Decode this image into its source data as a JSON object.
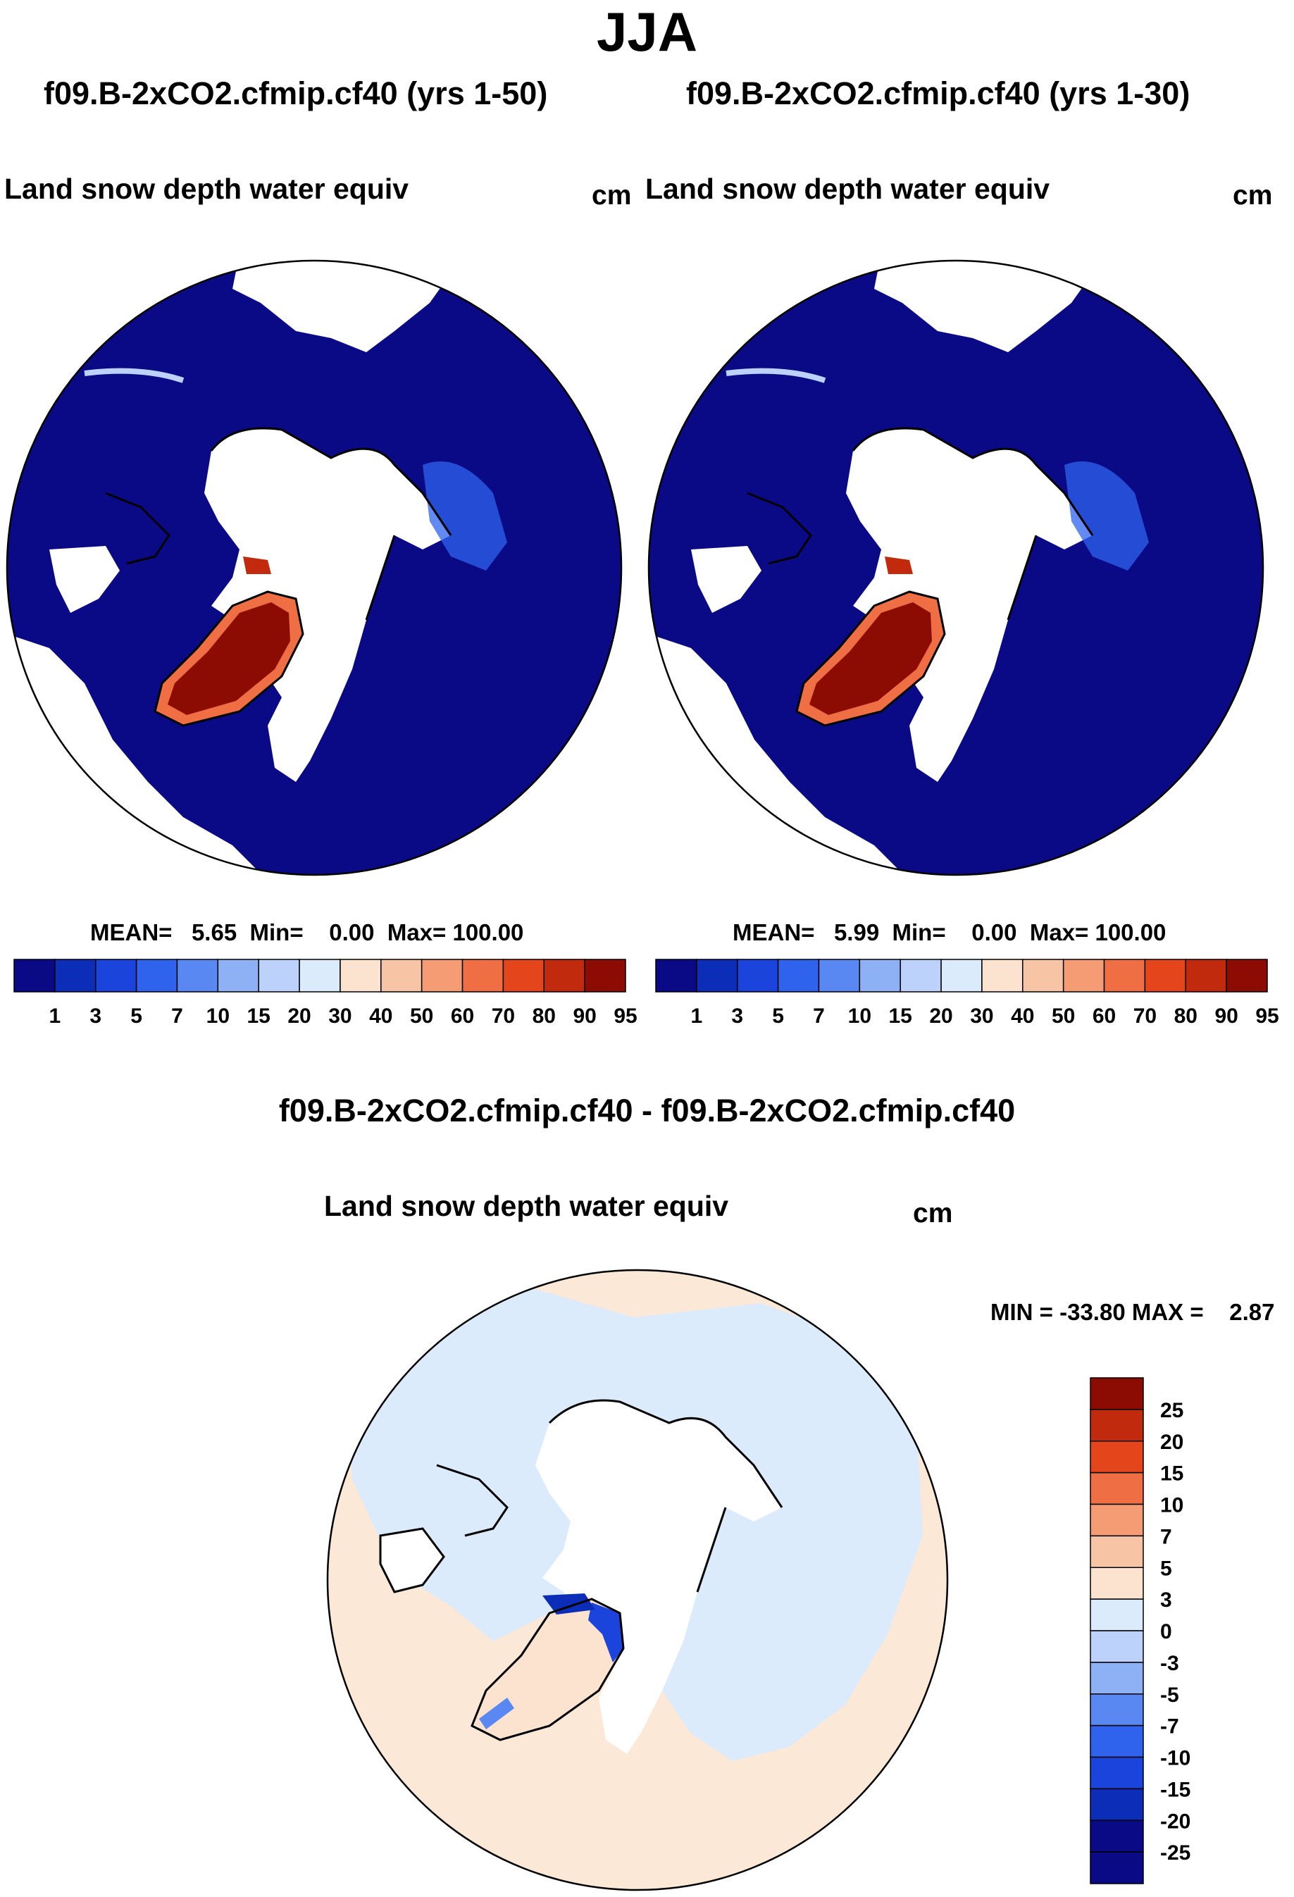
{
  "figure": {
    "season": "JJA",
    "left_run_title": "f09.B-2xCO2.cfmip.cf40 (yrs 1-50)",
    "right_run_title": "f09.B-2xCO2.cfmip.cf40 (yrs 1-30)",
    "variable": "Land snow depth water equiv",
    "unit": "cm",
    "diff_title": "f09.B-2xCO2.cfmip.cf40 - f09.B-2xCO2.cfmip.cf40"
  },
  "chart_data": [
    {
      "type": "map",
      "projection": "north-polar-stereographic",
      "title": "f09.B-2xCO2.cfmip.cf40 (yrs 1-50)",
      "variable": "Land snow depth water equiv",
      "unit": "cm",
      "stats_text": "MEAN=   5.65  Min=    0.00  Max= 100.00",
      "mean": 5.65,
      "min": 0.0,
      "max": 100.0,
      "legend_levels": [
        "1",
        "3",
        "5",
        "7",
        "10",
        "15",
        "20",
        "30",
        "40",
        "50",
        "60",
        "70",
        "80",
        "90",
        "95"
      ],
      "legend_colors": [
        "#0a0a86",
        "#0b2db8",
        "#1a44dc",
        "#2f63ee",
        "#5a88f2",
        "#8eb0f5",
        "#bdd2fa",
        "#dcebfc",
        "#fbe3cf",
        "#f8c4a6",
        "#f59c74",
        "#ef6e44",
        "#e4451b",
        "#c22a0e",
        "#8c0c04"
      ]
    },
    {
      "type": "map",
      "projection": "north-polar-stereographic",
      "title": "f09.B-2xCO2.cfmip.cf40 (yrs 1-30)",
      "variable": "Land snow depth water equiv",
      "unit": "cm",
      "stats_text": "MEAN=   5.99  Min=    0.00  Max= 100.00",
      "mean": 5.99,
      "min": 0.0,
      "max": 100.0,
      "legend_levels": [
        "1",
        "3",
        "5",
        "7",
        "10",
        "15",
        "20",
        "30",
        "40",
        "50",
        "60",
        "70",
        "80",
        "90",
        "95"
      ],
      "legend_colors": [
        "#0a0a86",
        "#0b2db8",
        "#1a44dc",
        "#2f63ee",
        "#5a88f2",
        "#8eb0f5",
        "#bdd2fa",
        "#dcebfc",
        "#fbe3cf",
        "#f8c4a6",
        "#f59c74",
        "#ef6e44",
        "#e4451b",
        "#c22a0e",
        "#8c0c04"
      ]
    },
    {
      "type": "map",
      "projection": "north-polar-stereographic",
      "title": "f09.B-2xCO2.cfmip.cf40 - f09.B-2xCO2.cfmip.cf40",
      "variable": "Land snow depth water equiv",
      "unit": "cm",
      "stats_text": "MIN = -33.80 MAX =    2.87",
      "min": -33.8,
      "max": 2.87,
      "legend_levels": [
        "25",
        "20",
        "15",
        "10",
        "7",
        "5",
        "3",
        "0",
        "-3",
        "-5",
        "-7",
        "-10",
        "-15",
        "-20",
        "-25"
      ],
      "legend_colors": [
        "#8c0c04",
        "#c22a0e",
        "#e4451b",
        "#ef6e44",
        "#f59c74",
        "#f8c4a6",
        "#fbe3cf",
        "#dcebfc",
        "#bdd2fa",
        "#8eb0f5",
        "#5a88f2",
        "#2f63ee",
        "#1a44dc",
        "#0b2db8",
        "#0a0a86"
      ]
    }
  ]
}
